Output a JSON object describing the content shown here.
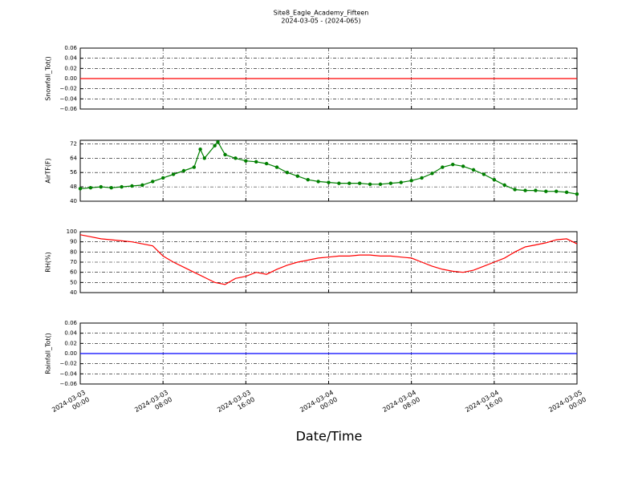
{
  "chart_data": [
    {
      "type": "line",
      "title": "Site8_Eagle_Academy_Fifteen",
      "subtitle": "2024-03-05 - (2024-065)",
      "ylabel": "Snowfall_Tot()",
      "x": [
        0,
        48
      ],
      "values": [
        0,
        0
      ],
      "color": "#ff0000",
      "xlim": [
        0,
        48
      ],
      "ylim": [
        -0.06,
        0.06
      ],
      "yticks": [
        {
          "value": -0.06,
          "label": "−0.06"
        },
        {
          "value": -0.04,
          "label": "−0.04"
        },
        {
          "value": -0.02,
          "label": "−0.02"
        },
        {
          "value": 0,
          "label": "0.00"
        },
        0.02,
        0.04,
        0.06
      ],
      "grid": true
    },
    {
      "type": "line",
      "ylabel": "AirTF(F)",
      "markers": true,
      "x": [
        0,
        1,
        2,
        3,
        4,
        5,
        6,
        7,
        8,
        9,
        10,
        11,
        11.6,
        12,
        13,
        13.3,
        14,
        15,
        16,
        17,
        18,
        19,
        20,
        21,
        22,
        23,
        24,
        25,
        26,
        27,
        28,
        29,
        30,
        31,
        32,
        33,
        34,
        35,
        36,
        37,
        38,
        39,
        40,
        41,
        42,
        43,
        44,
        45,
        46,
        47,
        48
      ],
      "values": [
        47,
        47.5,
        48,
        47.5,
        48,
        48.5,
        49,
        51,
        53,
        55,
        57,
        59,
        69,
        64,
        71,
        73,
        66,
        64,
        62.5,
        62,
        61,
        59,
        56,
        54,
        52,
        51,
        50.5,
        50,
        50,
        50,
        49.5,
        49.5,
        50,
        50.5,
        51.5,
        53,
        55.5,
        59,
        60.5,
        59.5,
        57.5,
        55,
        52,
        49,
        46.5,
        46,
        46,
        45.5,
        45.5,
        45,
        44
      ],
      "color": "#007f00",
      "xlim": [
        0,
        48
      ],
      "ylim": [
        40,
        74
      ],
      "yticks": [
        40,
        48,
        56,
        64,
        72
      ],
      "grid": true
    },
    {
      "type": "line",
      "ylabel": "RH(%)",
      "x": [
        0,
        1,
        2,
        3,
        4,
        5,
        6,
        7,
        8,
        9,
        10,
        11,
        12,
        13,
        14,
        15,
        16,
        17,
        18,
        19,
        20,
        21,
        22,
        23,
        24,
        25,
        26,
        27,
        28,
        29,
        30,
        31,
        32,
        33,
        34,
        35,
        36,
        37,
        38,
        39,
        40,
        41,
        42,
        43,
        44,
        45,
        46,
        47,
        48
      ],
      "values": [
        97,
        95,
        93,
        92,
        91,
        90,
        88,
        86,
        76,
        70,
        65,
        60,
        55,
        50,
        48,
        54,
        56,
        60,
        58,
        63,
        67,
        70,
        72,
        74,
        75,
        76,
        76,
        77,
        77,
        76,
        76,
        75,
        74,
        70,
        66,
        63,
        61,
        60,
        62,
        66,
        70,
        74,
        80,
        85,
        87,
        89,
        92,
        93,
        88
      ],
      "color": "#ff0000",
      "xlim": [
        0,
        48
      ],
      "ylim": [
        40,
        100
      ],
      "yticks": [
        40,
        50,
        60,
        70,
        80,
        90,
        100
      ],
      "grid": true
    },
    {
      "type": "line",
      "ylabel": "Rainfall_Tot()",
      "xlabel": "Date/Time",
      "x": [
        0,
        48
      ],
      "values": [
        0,
        0
      ],
      "color": "#0000ff",
      "xlim": [
        0,
        48
      ],
      "ylim": [
        -0.06,
        0.06
      ],
      "xticks": [
        {
          "value": 0,
          "label": "2024-03-03\n00:00"
        },
        {
          "value": 8,
          "label": "2024-03-03\n08:00"
        },
        {
          "value": 16,
          "label": "2024-03-03\n16:00"
        },
        {
          "value": 24,
          "label": "2024-03-04\n00:00"
        },
        {
          "value": 32,
          "label": "2024-03-04\n08:00"
        },
        {
          "value": 40,
          "label": "2024-03-04\n16:00"
        },
        {
          "value": 48,
          "label": "2024-03-05\n00:00"
        }
      ],
      "yticks": [
        {
          "value": -0.06,
          "label": "−0.06"
        },
        {
          "value": -0.04,
          "label": "−0.04"
        },
        {
          "value": -0.02,
          "label": "−0.02"
        },
        {
          "value": 0,
          "label": "0.00"
        },
        0.02,
        0.04,
        0.06
      ],
      "grid": true
    }
  ]
}
